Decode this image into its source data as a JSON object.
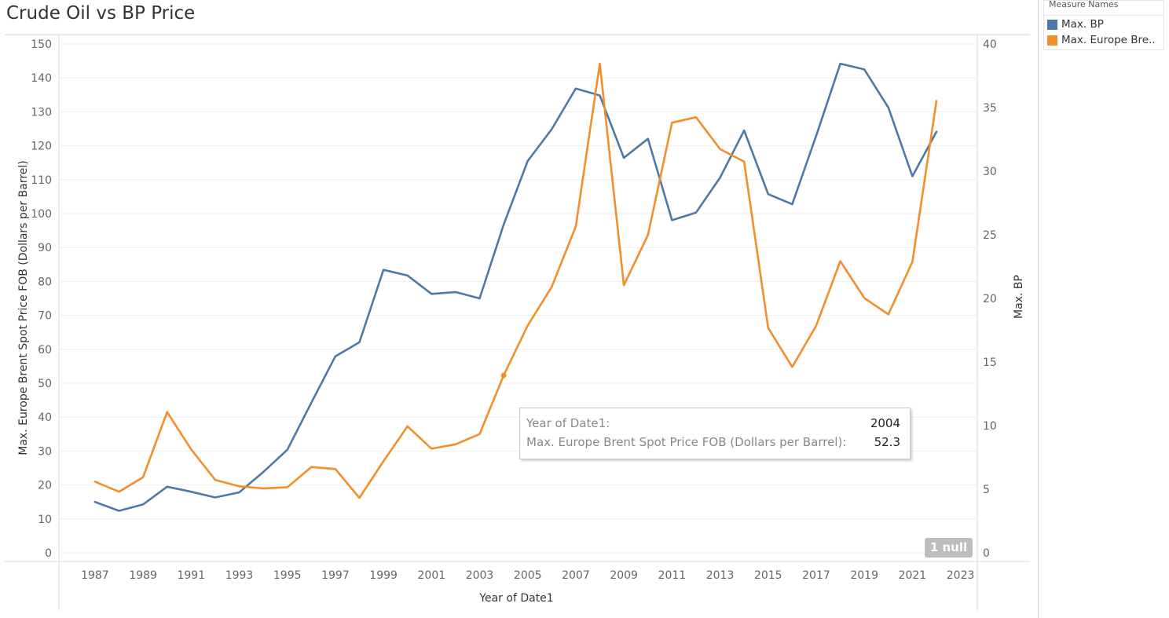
{
  "chart_data": {
    "type": "line",
    "title": "Crude Oil vs BP Price",
    "xlabel": "Year of Date1",
    "ylabel_left": "Max. Europe Brent Spot Price FOB (Dollars per Barrel)",
    "ylabel_right": "Max. BP",
    "x": [
      1987,
      1988,
      1989,
      1990,
      1991,
      1992,
      1993,
      1994,
      1995,
      1996,
      1997,
      1998,
      1999,
      2000,
      2001,
      2002,
      2003,
      2004,
      2005,
      2006,
      2007,
      2008,
      2009,
      2010,
      2011,
      2012,
      2013,
      2014,
      2015,
      2016,
      2017,
      2018,
      2019,
      2020,
      2021,
      2022
    ],
    "xticks": [
      "1987",
      "1989",
      "1991",
      "1993",
      "1995",
      "1997",
      "1999",
      "2001",
      "2003",
      "2005",
      "2007",
      "2009",
      "2011",
      "2013",
      "2015",
      "2017",
      "2019",
      "2021",
      "2023"
    ],
    "xlim": [
      1985.5,
      2023.7
    ],
    "ylim_left": [
      0,
      150
    ],
    "yticks_left": [
      "0",
      "10",
      "20",
      "30",
      "40",
      "50",
      "60",
      "70",
      "80",
      "90",
      "100",
      "110",
      "120",
      "130",
      "140",
      "150"
    ],
    "ylim_right": [
      0,
      40
    ],
    "yticks_right": [
      "0",
      "5",
      "10",
      "15",
      "20",
      "25",
      "30",
      "35",
      "40"
    ],
    "grid": true,
    "legend": {
      "title": "Measure Names",
      "placement": "right",
      "items": [
        {
          "label": "Max. BP",
          "color": "#4e79a7"
        },
        {
          "label": "Max. Europe Brent Spot Price FOB (Dollars per Barrel)",
          "display": "Max. Europe Bre..",
          "color": "#f28e2b"
        }
      ]
    },
    "series": [
      {
        "name": "Max. BP",
        "axis": "right",
        "color": "#4e79a7",
        "values": [
          4.0,
          3.3,
          3.8,
          5.2,
          4.8,
          4.35,
          4.75,
          6.35,
          8.1,
          11.8,
          15.45,
          16.55,
          22.25,
          21.8,
          20.35,
          20.5,
          20.0,
          25.8,
          30.8,
          33.3,
          36.5,
          35.95,
          31.05,
          32.55,
          26.15,
          26.75,
          29.5,
          33.2,
          28.2,
          27.4,
          32.8,
          38.45,
          38.0,
          35.0,
          29.6,
          33.1
        ]
      },
      {
        "name": "Max. Europe Brent Spot Price FOB (Dollars per Barrel)",
        "axis": "left",
        "color": "#f28e2b",
        "values": [
          21.0,
          18.0,
          22.3,
          41.5,
          30.5,
          21.5,
          19.6,
          19.0,
          19.3,
          25.3,
          24.7,
          16.2,
          27.0,
          37.3,
          30.7,
          32.0,
          35.0,
          52.3,
          67.0,
          78.4,
          96.2,
          144.2,
          78.9,
          93.7,
          126.8,
          128.4,
          119.0,
          115.3,
          66.3,
          54.8,
          67.0,
          86.0,
          75.1,
          70.3,
          85.8,
          133.2
        ]
      }
    ],
    "highlight": {
      "x": 2004,
      "series": 1
    },
    "tooltip": {
      "rows": [
        {
          "label": "Year of Date1:",
          "value": "2004"
        },
        {
          "label": "Max. Europe Brent Spot Price FOB (Dollars per Barrel):",
          "value": "52.3"
        }
      ]
    },
    "null_indicator": "1 null"
  }
}
